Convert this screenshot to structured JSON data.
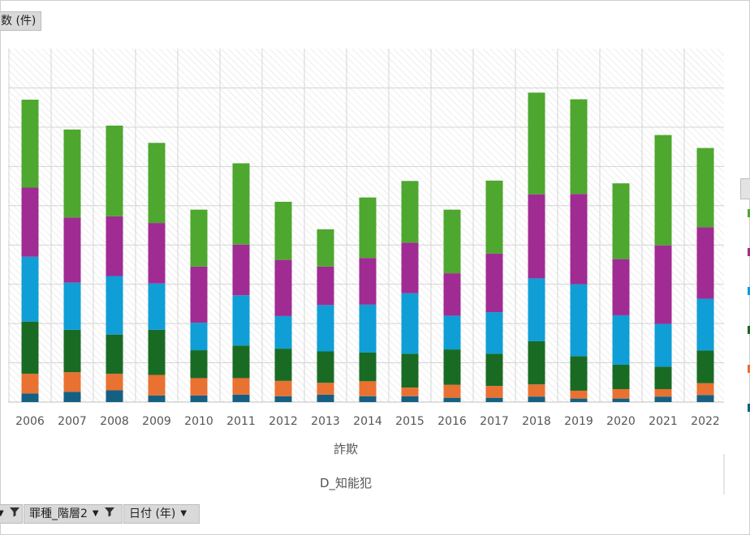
{
  "value_field": {
    "label": "数 (件)"
  },
  "filters": [
    {
      "label": "",
      "has_filter": true
    },
    {
      "label": "罪種_階層2",
      "has_filter": true
    },
    {
      "label": "日付 (年)",
      "has_filter": false
    }
  ],
  "legend": {
    "header": "",
    "colors": [
      "#4ea72e",
      "#a02b93",
      "#0f9ed5",
      "#196b24",
      "#e97132",
      "#156082"
    ]
  },
  "chart_data": {
    "type": "bar",
    "stacked": true,
    "title": "",
    "xlabel": "",
    "ylabel": "",
    "first_tick_partial": "5",
    "categories": [
      "2006",
      "2007",
      "2008",
      "2009",
      "2010",
      "2011",
      "2012",
      "2013",
      "2014",
      "2015",
      "2016",
      "2017",
      "2018",
      "2019",
      "2020",
      "2021",
      "2022"
    ],
    "group_labels": [
      "詐欺",
      "D_知能犯"
    ],
    "ylim": [
      0,
      9000
    ],
    "y_grid_step": 1000,
    "grid": true,
    "series": [
      {
        "color": "#156082",
        "values": [
          220,
          260,
          300,
          170,
          170,
          190,
          150,
          190,
          150,
          150,
          110,
          110,
          140,
          90,
          90,
          140,
          180
        ]
      },
      {
        "color": "#e97132",
        "values": [
          500,
          500,
          420,
          520,
          440,
          420,
          390,
          300,
          380,
          220,
          330,
          300,
          310,
          200,
          240,
          190,
          300
        ]
      },
      {
        "color": "#196b24",
        "values": [
          1330,
          1080,
          1000,
          1150,
          710,
          830,
          820,
          800,
          730,
          860,
          900,
          820,
          1100,
          880,
          620,
          570,
          830
        ]
      },
      {
        "color": "#0f9ed5",
        "values": [
          1650,
          1200,
          1490,
          1180,
          700,
          1280,
          830,
          1180,
          1220,
          1540,
          860,
          1060,
          1600,
          1830,
          1260,
          1090,
          1320
        ]
      },
      {
        "color": "#a02b93",
        "values": [
          1760,
          1660,
          1520,
          1540,
          1430,
          1290,
          1430,
          980,
          1190,
          1290,
          1080,
          1490,
          2140,
          2300,
          1430,
          2000,
          1820
        ]
      },
      {
        "color": "#4ea72e",
        "values": [
          2240,
          2240,
          2310,
          2040,
          1450,
          2070,
          1480,
          950,
          1540,
          1570,
          1620,
          1860,
          2590,
          2410,
          1930,
          2810,
          2020
        ]
      }
    ]
  }
}
